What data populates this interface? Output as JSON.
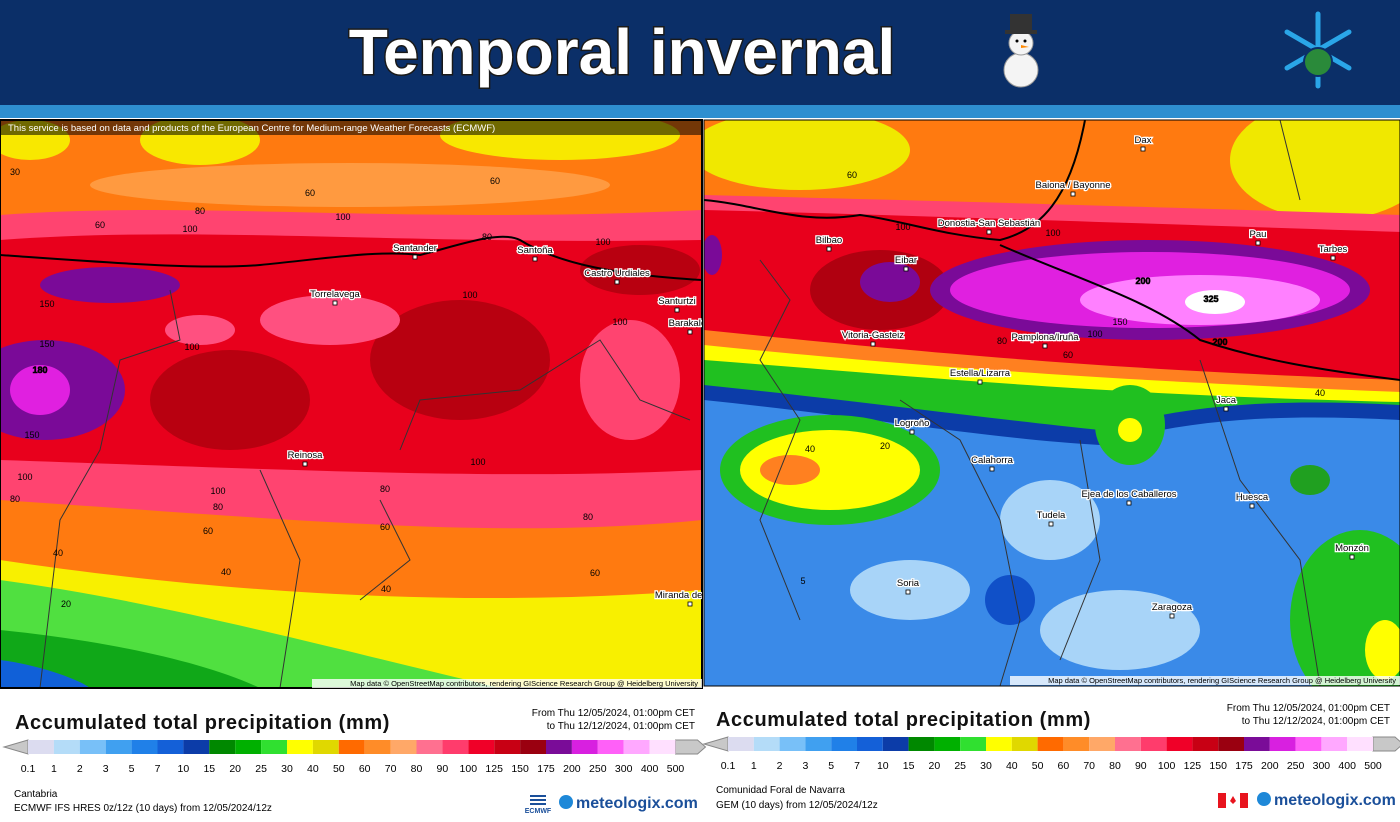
{
  "header": {
    "title": "Temporal invernal"
  },
  "panels": [
    {
      "attribution": "This service is based on data and products of the European Centre for Medium-range Weather Forecasts (ECMWF)",
      "places": [
        "Santander",
        "Santoña",
        "Castro Urdiales",
        "Torrelavega",
        "Santurtzi",
        "Barakaldo",
        "Reinosa",
        "Miranda de Ebro"
      ],
      "contour_labels": [
        30,
        60,
        80,
        100,
        60,
        60,
        100,
        80,
        100,
        150,
        150,
        180,
        150,
        100,
        80,
        100,
        100,
        100,
        100,
        100,
        80,
        60,
        80,
        60,
        40,
        40,
        40,
        60,
        20,
        80
      ],
      "map_credit": "Map data © OpenStreetMap contributors, rendering GIScience Research Group @ Heidelberg University",
      "legend": {
        "title": "Accumulated total precipitation (mm)",
        "from": "From Thu 12/05/2024, 01:00pm CET",
        "to": "to Thu 12/12/2024, 01:00pm CET",
        "region": "Cantabria",
        "model": "ECMWF IFS HRES 0z/12z (10 days) from 12/05/2024/12z",
        "logo": "ECMWF"
      }
    },
    {
      "places": [
        "Dax",
        "Baiona / Bayonne",
        "Donostia-San Sebastián",
        "Bilbao",
        "Eibar",
        "Pau",
        "Tarbes",
        "Vitoria-Gasteiz",
        "Pamplona/Iruña",
        "Estella/Lizarra",
        "Jaca",
        "Logroño",
        "Calahorra",
        "Ejea de los Caballeros",
        "Huesca",
        "Tudela",
        "Monzón",
        "Soria",
        "Zaragoza"
      ],
      "contour_labels": [
        60,
        80,
        100,
        100,
        200,
        325,
        150,
        100,
        80,
        60,
        40,
        20,
        40,
        5,
        200
      ],
      "map_credit": "Map data © OpenStreetMap contributors, rendering GIScience Research Group @ Heidelberg University",
      "legend": {
        "title": "Accumulated total precipitation (mm)",
        "from": "From Thu 12/05/2024, 01:00pm CET",
        "to": "to Thu 12/12/2024, 01:00pm CET",
        "region": "Comunidad Foral de Navarra",
        "model": "GEM (10 days) from 12/05/2024/12z"
      }
    }
  ],
  "legend_scale": {
    "labels": [
      0.1,
      1,
      2,
      3,
      5,
      7,
      10,
      15,
      20,
      25,
      30,
      40,
      50,
      60,
      70,
      80,
      90,
      100,
      125,
      150,
      175,
      200,
      250,
      300,
      400,
      500
    ],
    "colors": [
      "#dcdcf0",
      "#b4dcf8",
      "#78c0f8",
      "#40a0f0",
      "#2080e8",
      "#1460d8",
      "#0c3ca8",
      "#008800",
      "#00b000",
      "#30e030",
      "#ffff00",
      "#e0d800",
      "#ff6a00",
      "#ff8c28",
      "#ffa868",
      "#ff7090",
      "#ff3c6c",
      "#f00028",
      "#c80014",
      "#9a0010",
      "#7a0c98",
      "#d820e0",
      "#ff60f8",
      "#ffa8ff",
      "#ffe0ff"
    ]
  },
  "brand": "meteologix.com"
}
